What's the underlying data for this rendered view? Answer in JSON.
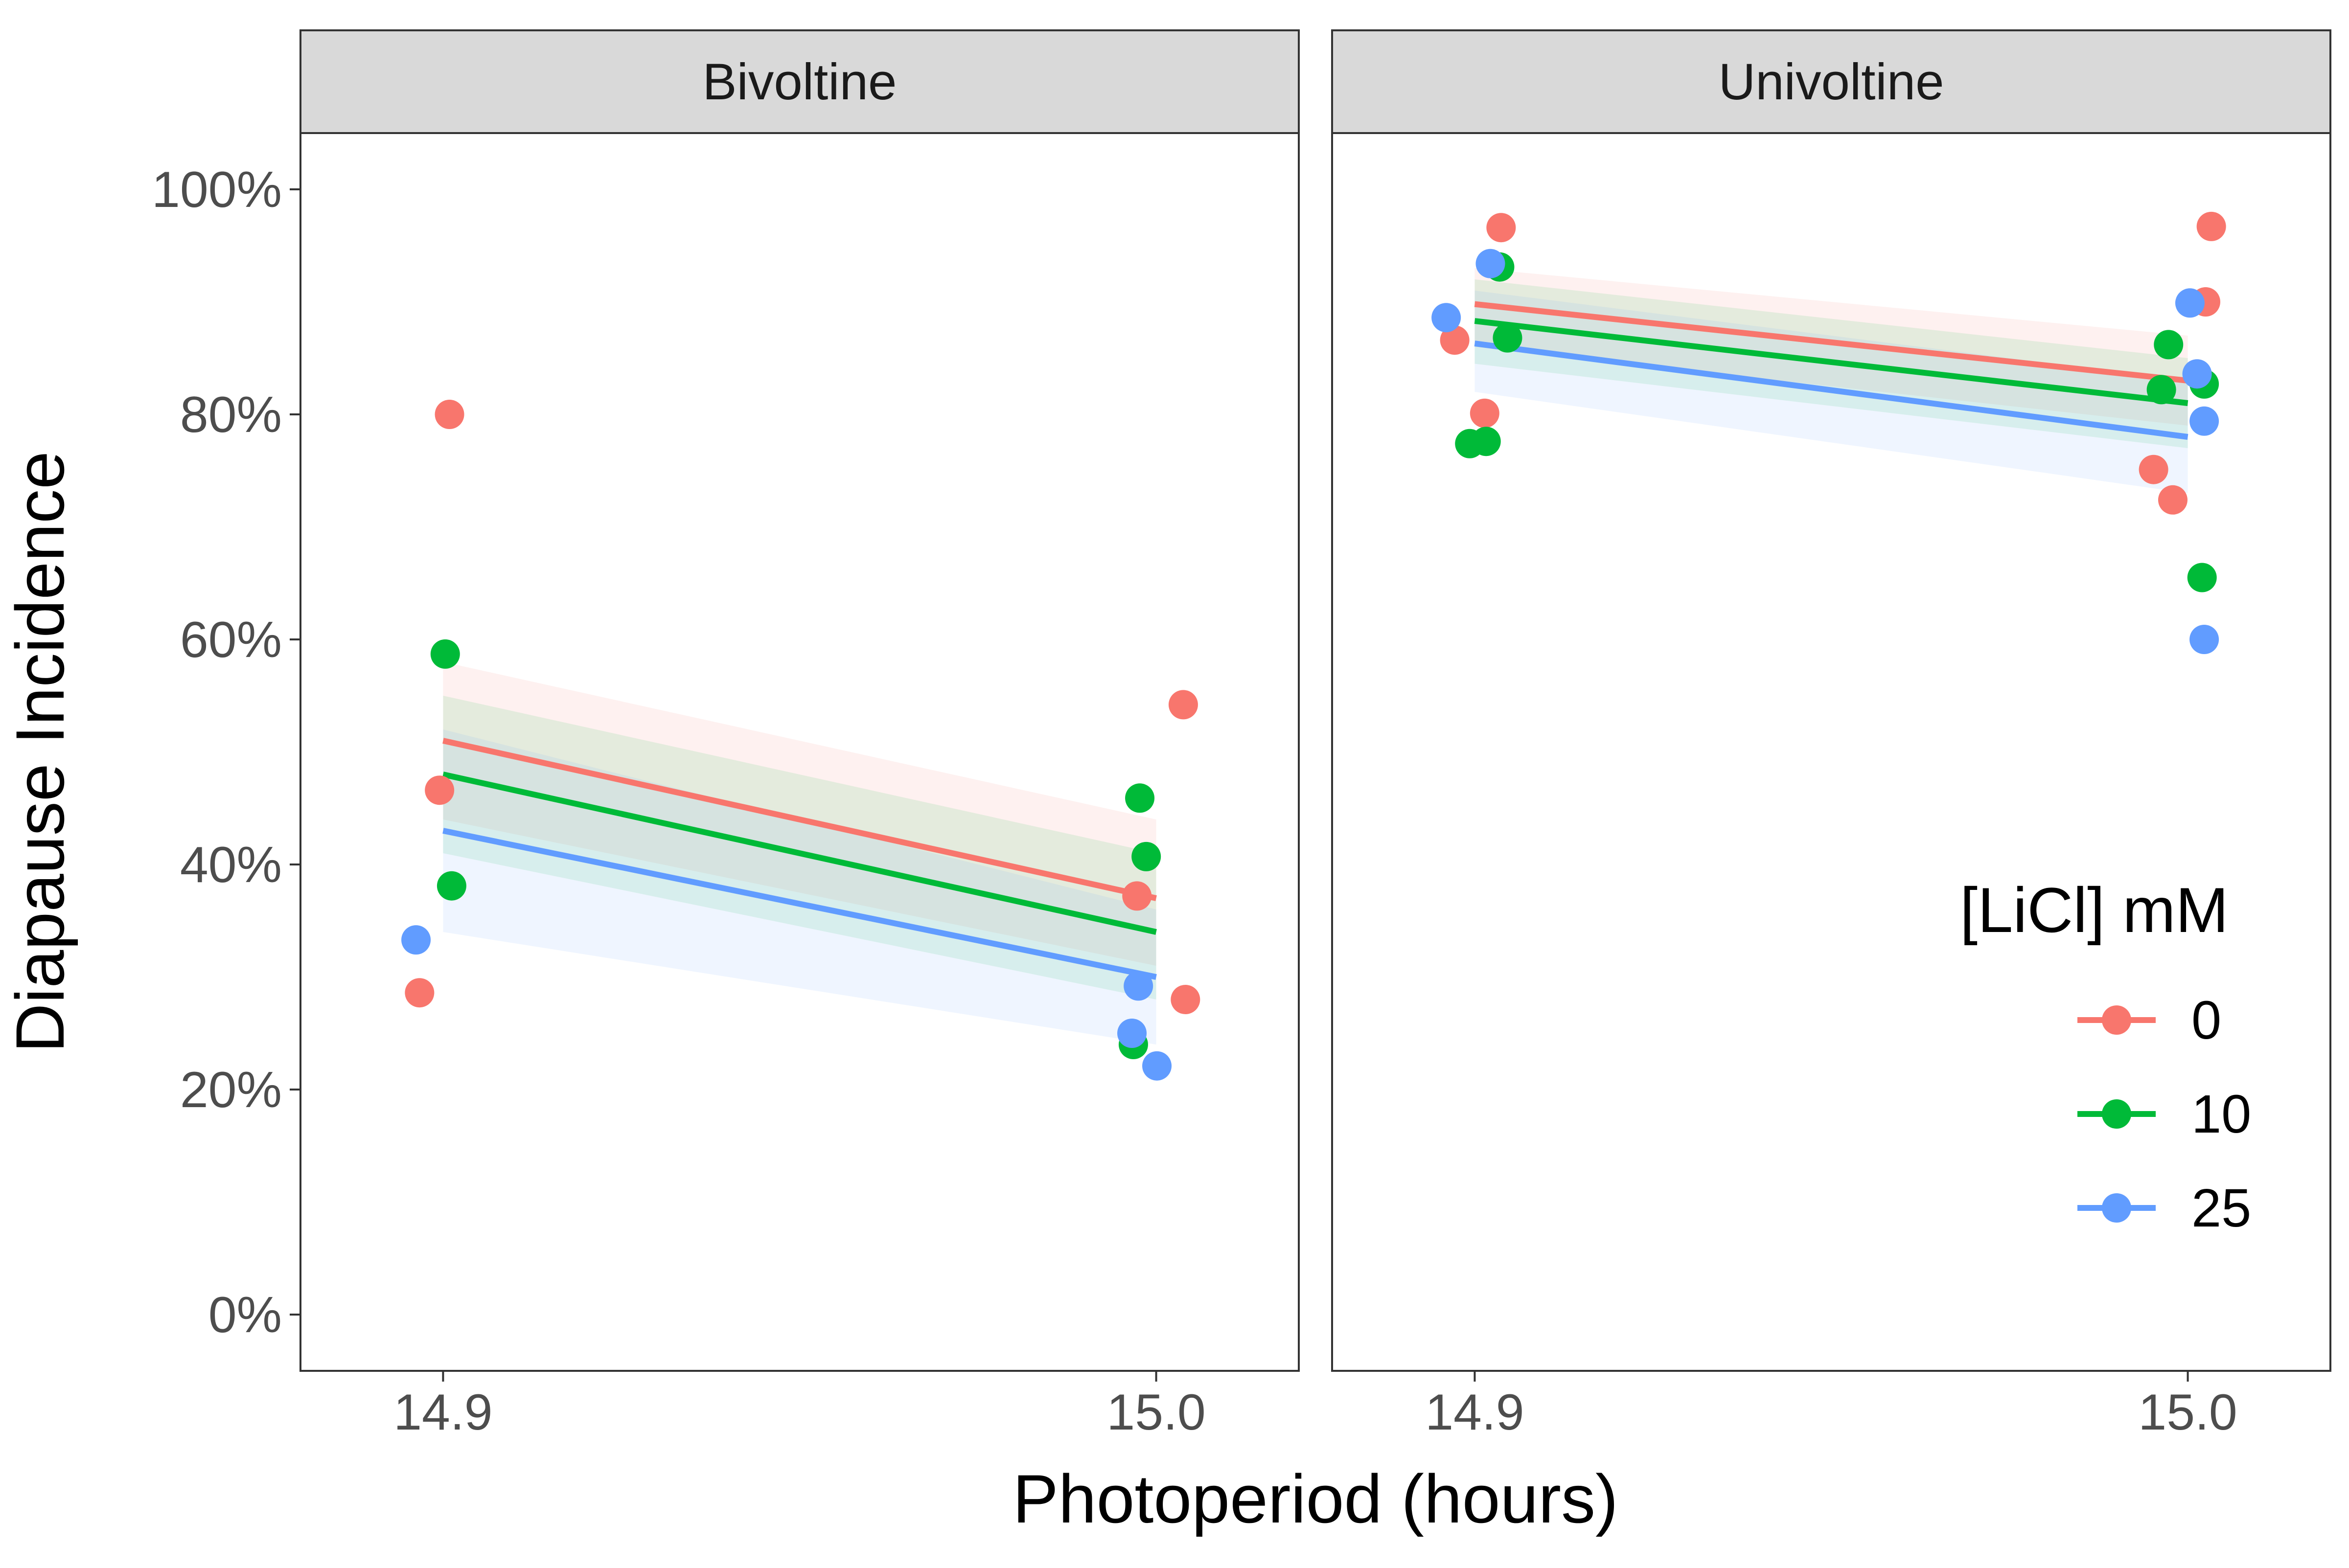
{
  "chart_data": {
    "type": "scatter",
    "facets": [
      "Bivoltine",
      "Univoltine"
    ],
    "xlabel": "Photoperiod (hours)",
    "ylabel": "Diapause Incidence",
    "x_ticks": [
      "14.9",
      "15.0"
    ],
    "x_tick_values": [
      14.9,
      15.0
    ],
    "xlim": [
      14.88,
      15.02
    ],
    "y_ticks": [
      "0%",
      "20%",
      "40%",
      "60%",
      "80%",
      "100%"
    ],
    "y_tick_values": [
      0,
      20,
      40,
      60,
      80,
      100
    ],
    "ylim": [
      -5,
      105
    ],
    "grid": false,
    "legend": {
      "title": "[LiCl] mM",
      "position": "right-bottom inside",
      "entries": [
        "0",
        "10",
        "25"
      ]
    },
    "colors": {
      "0": "#F8766D",
      "10": "#00BA38",
      "25": "#619CFF"
    },
    "series": [
      {
        "name": "0",
        "facets": {
          "Bivoltine": {
            "points": [
              [
                14.8967,
                28.6
              ],
              [
                14.8995,
                46.6
              ],
              [
                14.9009,
                80.0
              ],
              [
                14.9973,
                37.2
              ],
              [
                15.0038,
                54.2
              ],
              [
                15.0041,
                28.0
              ]
            ],
            "fit": {
              "x": [
                14.9,
                15.0
              ],
              "y": [
                51.0,
                37.0
              ]
            },
            "ci_lower": [
              44.0,
              31.0
            ],
            "ci_upper": [
              58.0,
              44.0
            ]
          },
          "Univoltine": {
            "points": [
              [
                14.8972,
                86.6
              ],
              [
                14.9014,
                80.1
              ],
              [
                14.9037,
                96.6
              ],
              [
                14.9952,
                75.1
              ],
              [
                14.9979,
                72.4
              ],
              [
                15.0025,
                90.0
              ],
              [
                15.0033,
                96.7
              ]
            ],
            "fit": {
              "x": [
                14.9,
                15.0
              ],
              "y": [
                89.8,
                83.0
              ]
            },
            "ci_lower": [
              86.0,
              79.0
            ],
            "ci_upper": [
              93.0,
              87.0
            ]
          }
        }
      },
      {
        "name": "10",
        "facets": {
          "Bivoltine": {
            "points": [
              [
                14.9003,
                58.7
              ],
              [
                14.9012,
                38.1
              ],
              [
                14.9968,
                24.0
              ],
              [
                14.9977,
                45.9
              ],
              [
                14.9986,
                40.7
              ]
            ],
            "fit": {
              "x": [
                14.9,
                15.0
              ],
              "y": [
                48.0,
                34.0
              ]
            },
            "ci_lower": [
              41.0,
              28.0
            ],
            "ci_upper": [
              55.0,
              41.0
            ]
          },
          "Univoltine": {
            "points": [
              [
                14.8993,
                77.4
              ],
              [
                14.9016,
                77.6
              ],
              [
                14.9035,
                93.1
              ],
              [
                14.9046,
                86.8
              ],
              [
                14.9963,
                82.2
              ],
              [
                14.9973,
                86.2
              ],
              [
                15.0023,
                82.7
              ],
              [
                15.002,
                65.5
              ]
            ],
            "fit": {
              "x": [
                14.9,
                15.0
              ],
              "y": [
                88.3,
                81.0
              ]
            },
            "ci_lower": [
              84.5,
              77.0
            ],
            "ci_upper": [
              92.0,
              85.0
            ]
          }
        }
      },
      {
        "name": "25",
        "facets": {
          "Bivoltine": {
            "points": [
              [
                14.8962,
                33.3
              ],
              [
                14.9966,
                25.0
              ],
              [
                14.9975,
                29.2
              ],
              [
                15.0001,
                22.1
              ]
            ],
            "fit": {
              "x": [
                14.9,
                15.0
              ],
              "y": [
                43.0,
                30.0
              ]
            },
            "ci_lower": [
              34.0,
              24.0
            ],
            "ci_upper": [
              52.0,
              36.0
            ]
          },
          "Univoltine": {
            "points": [
              [
                14.896,
                88.6
              ],
              [
                14.9022,
                93.4
              ],
              [
                15.0003,
                89.9
              ],
              [
                15.0013,
                83.6
              ],
              [
                15.0023,
                79.4
              ],
              [
                15.0023,
                60.0
              ]
            ],
            "fit": {
              "x": [
                14.9,
                15.0
              ],
              "y": [
                86.3,
                78.0
              ]
            },
            "ci_lower": [
              82.0,
              73.0
            ],
            "ci_upper": [
              91.0,
              83.0
            ]
          }
        }
      }
    ]
  }
}
